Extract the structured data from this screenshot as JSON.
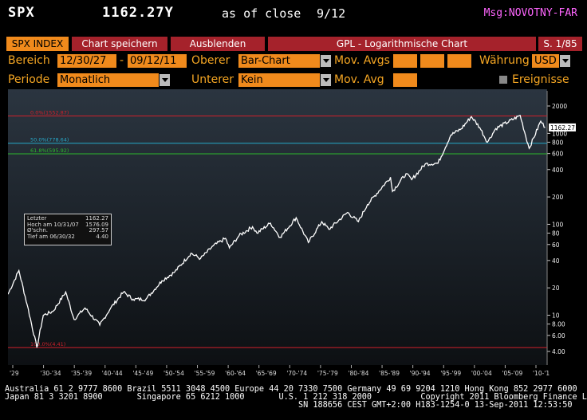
{
  "header": {
    "ticker": "SPX",
    "price": "1162.27Y",
    "as_of": "as of close",
    "date": "9/12",
    "msg": "Msg:NOVOTNY-FAR"
  },
  "tabs": {
    "index": "SPX INDEX",
    "save": "Chart speichern",
    "hide": "Ausblenden",
    "title": "GPL - Logarithmische Chart",
    "page": "S. 1/85"
  },
  "controls": {
    "range_label": "Bereich",
    "range_from": "12/30/27",
    "range_sep": "-",
    "range_to": "09/12/11",
    "upper_label": "Oberer",
    "upper_value": "Bar-Chart",
    "movavgs_label": "Mov. Avgs",
    "currency_label": "Währung",
    "currency_value": "USD",
    "period_label": "Periode",
    "period_value": "Monatlich",
    "lower_label": "Unterer",
    "lower_value": "Kein",
    "movavg_label": "Mov. Avg",
    "events_label": "Ereignisse"
  },
  "chart_data": {
    "type": "line",
    "scale": "log",
    "ylim": [
      3.2,
      2600
    ],
    "y_ticks": [
      "2000",
      "1000",
      "800",
      "600",
      "400",
      "200",
      "100",
      "80",
      "60",
      "40",
      "20",
      "10",
      "8.00",
      "6.00",
      "4.00"
    ],
    "y_tick_values": [
      2000,
      1000,
      800,
      600,
      400,
      200,
      100,
      80,
      60,
      40,
      20,
      10,
      8,
      6,
      4
    ],
    "last_value_label": "1162.27",
    "x_ticks": [
      "'29",
      "'30-'34",
      "'35-'39",
      "'40-'44",
      "'45-'49",
      "'50-'54",
      "'55-'59",
      "'60-'64",
      "'65-'69",
      "'70-'74",
      "'75-'79",
      "'80-'84",
      "'85-'89",
      "'90-'94",
      "'95-'99",
      "'00-'04",
      "'05-'09",
      "'10-'1"
    ],
    "x_range": [
      1928,
      2012
    ],
    "levels": [
      {
        "label": "0.0%(1552.87)",
        "value": 1552.87,
        "color": "#d0202a"
      },
      {
        "label": "50.0%(778.64)",
        "value": 778.64,
        "color": "#27a9c9"
      },
      {
        "label": "61.8%(595.92)",
        "value": 595.92,
        "color": "#2db82d"
      },
      {
        "label": "100.0%(4.41)",
        "value": 4.41,
        "color": "#d0202a"
      }
    ],
    "series": [
      {
        "x": [
          1928,
          1929.7,
          1931,
          1932.5,
          1933.5,
          1935,
          1937,
          1938.3,
          1940,
          1942.3,
          1944,
          1946,
          1947.5,
          1949.5,
          1952,
          1954,
          1956.5,
          1958,
          1960,
          1961.9,
          1962.5,
          1964,
          1966.1,
          1966.8,
          1968.9,
          1970.4,
          1972.9,
          1974.8,
          1976.9,
          1978,
          1980.9,
          1982.6,
          1984,
          1987.6,
          1987.9,
          1990,
          1990.9,
          1993,
          1995,
          1997,
          1998.6,
          2000.2,
          2001.5,
          2002.7,
          2004,
          2007.8,
          2009.2,
          2011,
          2011.7
        ],
        "y": [
          17,
          31,
          13,
          4.41,
          10,
          11,
          18,
          9,
          12,
          7.8,
          12,
          18,
          15,
          15,
          24,
          30,
          48,
          42,
          58,
          70,
          55,
          75,
          94,
          80,
          103,
          72,
          118,
          63,
          107,
          88,
          135,
          107,
          165,
          330,
          230,
          360,
          310,
          460,
          470,
          960,
          1120,
          1530,
          1160,
          800,
          1130,
          1576,
          683,
          1360,
          1162
        ]
      }
    ]
  },
  "legend": {
    "rows": [
      {
        "label": "Letzter",
        "value": "1162.27"
      },
      {
        "label": "Hoch am 10/31/07",
        "value": "1576.09"
      },
      {
        "label": "Ø'schn.",
        "value": "297.57"
      },
      {
        "label": "Tief am 06/30/32",
        "value": "4.40"
      }
    ]
  },
  "footer": {
    "line1": "Australia 61 2 9777 8600 Brazil 5511 3048 4500 Europe 44 20 7330 7500 Germany 49 69 9204 1210 Hong Kong 852 2977 6000",
    "line2": "Japan 81 3 3201 8900       Singapore 65 6212 1000       U.S. 1 212 318 2000          Copyright 2011 Bloomberg Finance L.P.",
    "line3": "SN 188656 CEST GMT+2:00 H183-1254-0 13-Sep-2011 12:53:50"
  }
}
